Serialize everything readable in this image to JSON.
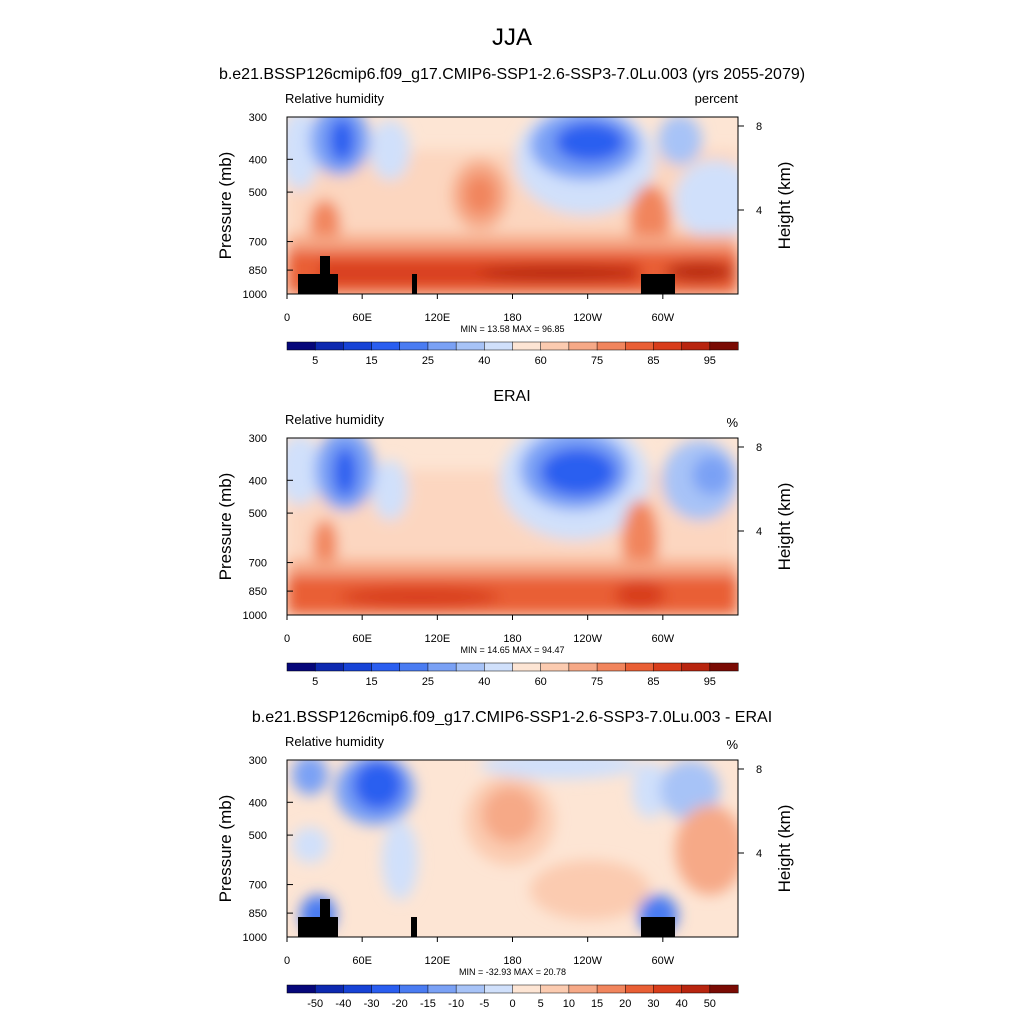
{
  "figure": {
    "title": "JJA"
  },
  "chart_data": [
    {
      "type": "heatmap",
      "title": "b.e21.BSSP126cmip6.f09_g17.CMIP6-SSP1-2.6-SSP3-7.0Lu.003 (yrs 2055-2079)",
      "left_label": "Relative humidity",
      "right_label": "percent",
      "ylabel": "Pressure (mb)",
      "ylabel_right": "Height (km)",
      "y_ticks": [
        "300",
        "400",
        "500",
        "700",
        "850",
        "1000"
      ],
      "y_right_ticks": [
        "8",
        "4"
      ],
      "x_ticks": [
        "0",
        "60E",
        "120E",
        "180",
        "120W",
        "60W"
      ],
      "stats_text": "MIN =  13.58  MAX =  96.85",
      "colorbar_labels": [
        "5",
        "15",
        "25",
        "40",
        "60",
        "75",
        "85",
        "95"
      ],
      "colorbar_colors": [
        "#06077a",
        "#0d29b0",
        "#1743d6",
        "#2a5ef0",
        "#4a7cf2",
        "#7aa1f5",
        "#a7c3f7",
        "#d0e0fb",
        "#fde5d4",
        "#fbcbb0",
        "#f6a987",
        "#f1855d",
        "#e95f35",
        "#d83d1b",
        "#b8250f",
        "#7a0b04"
      ],
      "has_topography": true
    },
    {
      "type": "heatmap",
      "title": "ERAI",
      "left_label": "Relative humidity",
      "right_label": "%",
      "ylabel": "Pressure (mb)",
      "ylabel_right": "Height (km)",
      "y_ticks": [
        "300",
        "400",
        "500",
        "700",
        "850",
        "1000"
      ],
      "y_right_ticks": [
        "8",
        "4"
      ],
      "x_ticks": [
        "0",
        "60E",
        "120E",
        "180",
        "120W",
        "60W"
      ],
      "stats_text": "MIN =  14.65  MAX =  94.47",
      "colorbar_labels": [
        "5",
        "15",
        "25",
        "40",
        "60",
        "75",
        "85",
        "95"
      ],
      "colorbar_colors": [
        "#06077a",
        "#0d29b0",
        "#1743d6",
        "#2a5ef0",
        "#4a7cf2",
        "#7aa1f5",
        "#a7c3f7",
        "#d0e0fb",
        "#fde5d4",
        "#fbcbb0",
        "#f6a987",
        "#f1855d",
        "#e95f35",
        "#d83d1b",
        "#b8250f",
        "#7a0b04"
      ],
      "has_topography": false
    },
    {
      "type": "heatmap",
      "title": "b.e21.BSSP126cmip6.f09_g17.CMIP6-SSP1-2.6-SSP3-7.0Lu.003 - ERAI",
      "left_label": "Relative humidity",
      "right_label": "%",
      "ylabel": "Pressure (mb)",
      "ylabel_right": "Height (km)",
      "y_ticks": [
        "300",
        "400",
        "500",
        "700",
        "850",
        "1000"
      ],
      "y_right_ticks": [
        "8",
        "4"
      ],
      "x_ticks": [
        "0",
        "60E",
        "120E",
        "180",
        "120W",
        "60W"
      ],
      "stats_text": "MIN = -32.93  MAX =  20.78",
      "colorbar_labels": [
        "-50",
        "-40",
        "-30",
        "-20",
        "-15",
        "-10",
        "-5",
        "0",
        "5",
        "10",
        "15",
        "20",
        "30",
        "40",
        "50"
      ],
      "colorbar_colors": [
        "#06077a",
        "#0d29b0",
        "#1743d6",
        "#2a5ef0",
        "#4a7cf2",
        "#7aa1f5",
        "#a7c3f7",
        "#d0e0fb",
        "#fde5d4",
        "#fbcbb0",
        "#f6a987",
        "#f1855d",
        "#e95f35",
        "#d83d1b",
        "#b8250f",
        "#7a0b04"
      ],
      "has_topography": true
    }
  ]
}
